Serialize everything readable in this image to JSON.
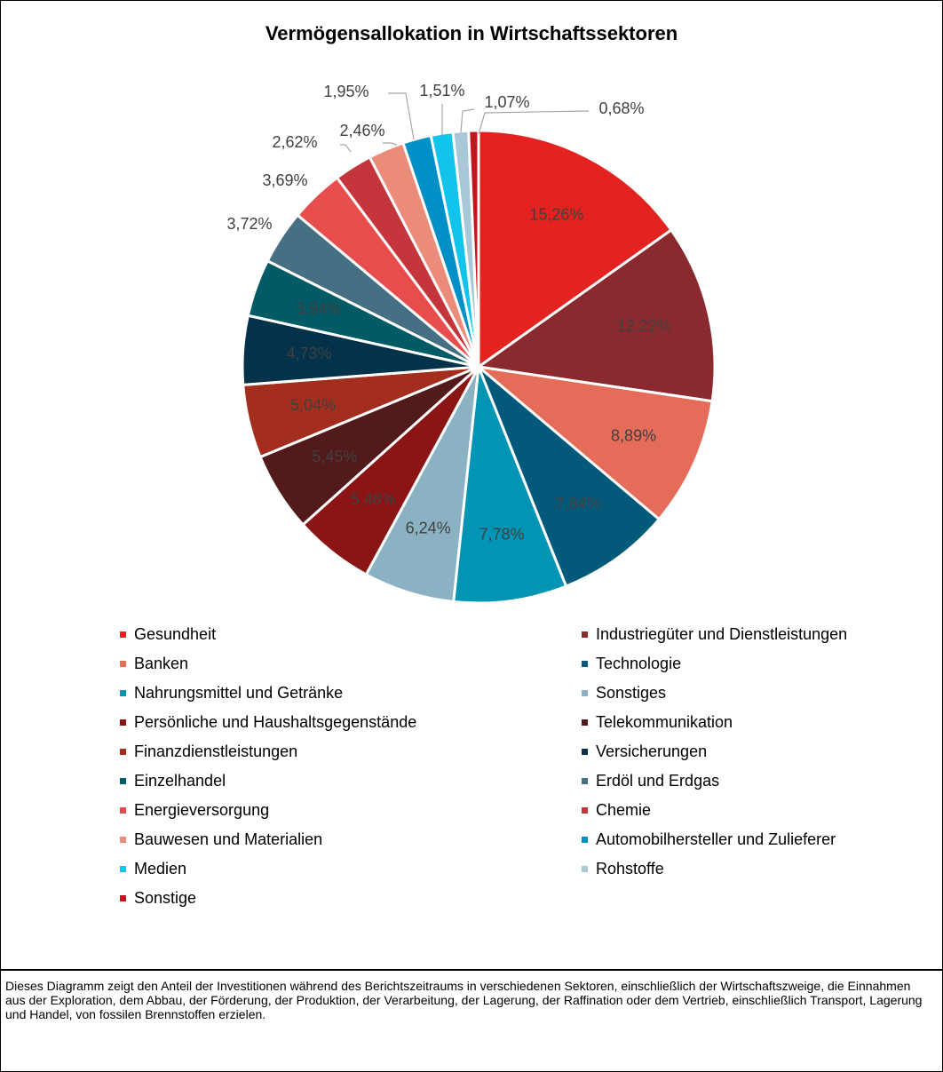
{
  "chart_data": {
    "type": "pie",
    "title": "Vermögensallokation in Wirtschaftssektoren",
    "categories": [
      "Gesundheit",
      "Industriegüter und Dienstleistungen",
      "Banken",
      "Technologie",
      "Nahrungsmittel und Getränke",
      "Sonstiges",
      "Persönliche und Haushaltsgegenstände",
      "Telekommunikation",
      "Finanzdienstleistungen",
      "Versicherungen",
      "Einzelhandel",
      "Erdöl und Erdgas",
      "Energieversorgung",
      "Chemie",
      "Bauwesen und Materialien",
      "Automobilhersteller und Zulieferer",
      "Medien",
      "Rohstoffe",
      "Sonstige"
    ],
    "values": [
      15.26,
      12.22,
      8.89,
      7.84,
      7.78,
      6.24,
      5.48,
      5.45,
      5.04,
      4.73,
      3.94,
      3.72,
      3.69,
      2.62,
      2.46,
      1.95,
      1.51,
      1.07,
      0.68
    ],
    "labels": [
      "15,26%",
      "12,22%",
      "8,89%",
      "7,84%",
      "7,78%",
      "6,24%",
      "5,48%",
      "5,45%",
      "5,04%",
      "4,73%",
      "3,94%",
      "3,72%",
      "3,69%",
      "2,62%",
      "2,46%",
      "1,95%",
      "1,51%",
      "1,07%",
      "0,68%"
    ],
    "colors": [
      "#E42320",
      "#8B2A2E",
      "#E46C59",
      "#02597A",
      "#0095B4",
      "#8AB2C3",
      "#8B1515",
      "#521A1A",
      "#A32E1D",
      "#03324A",
      "#025A66",
      "#456F82",
      "#E84D4D",
      "#C4363C",
      "#EB8B79",
      "#0090C8",
      "#10C4EB",
      "#A9C8D7",
      "#C0171E"
    ],
    "label_colors": [
      "#404040",
      "#404040",
      "#404040",
      "#404040",
      "#404040",
      "#404040",
      "#404040",
      "#404040",
      "#404040",
      "#404040",
      "#404040",
      "#404040",
      "#404040",
      "#404040",
      "#404040",
      "#404040",
      "#404040",
      "#404040",
      "#404040"
    ],
    "legend_position": "bottom"
  },
  "footnote": "Dieses Diagramm zeigt den Anteil der Investitionen während des Berichtszeitraums in verschiedenen Sektoren, einschließlich der Wirtschaftszweige, die Einnahmen aus der Exploration, dem Abbau, der Förderung, der Produktion, der Verarbeitung, der Lagerung, der Raffination oder dem Vertrieb, einschließlich Transport, Lagerung und Handel, von fossilen Brennstoffen erzielen."
}
